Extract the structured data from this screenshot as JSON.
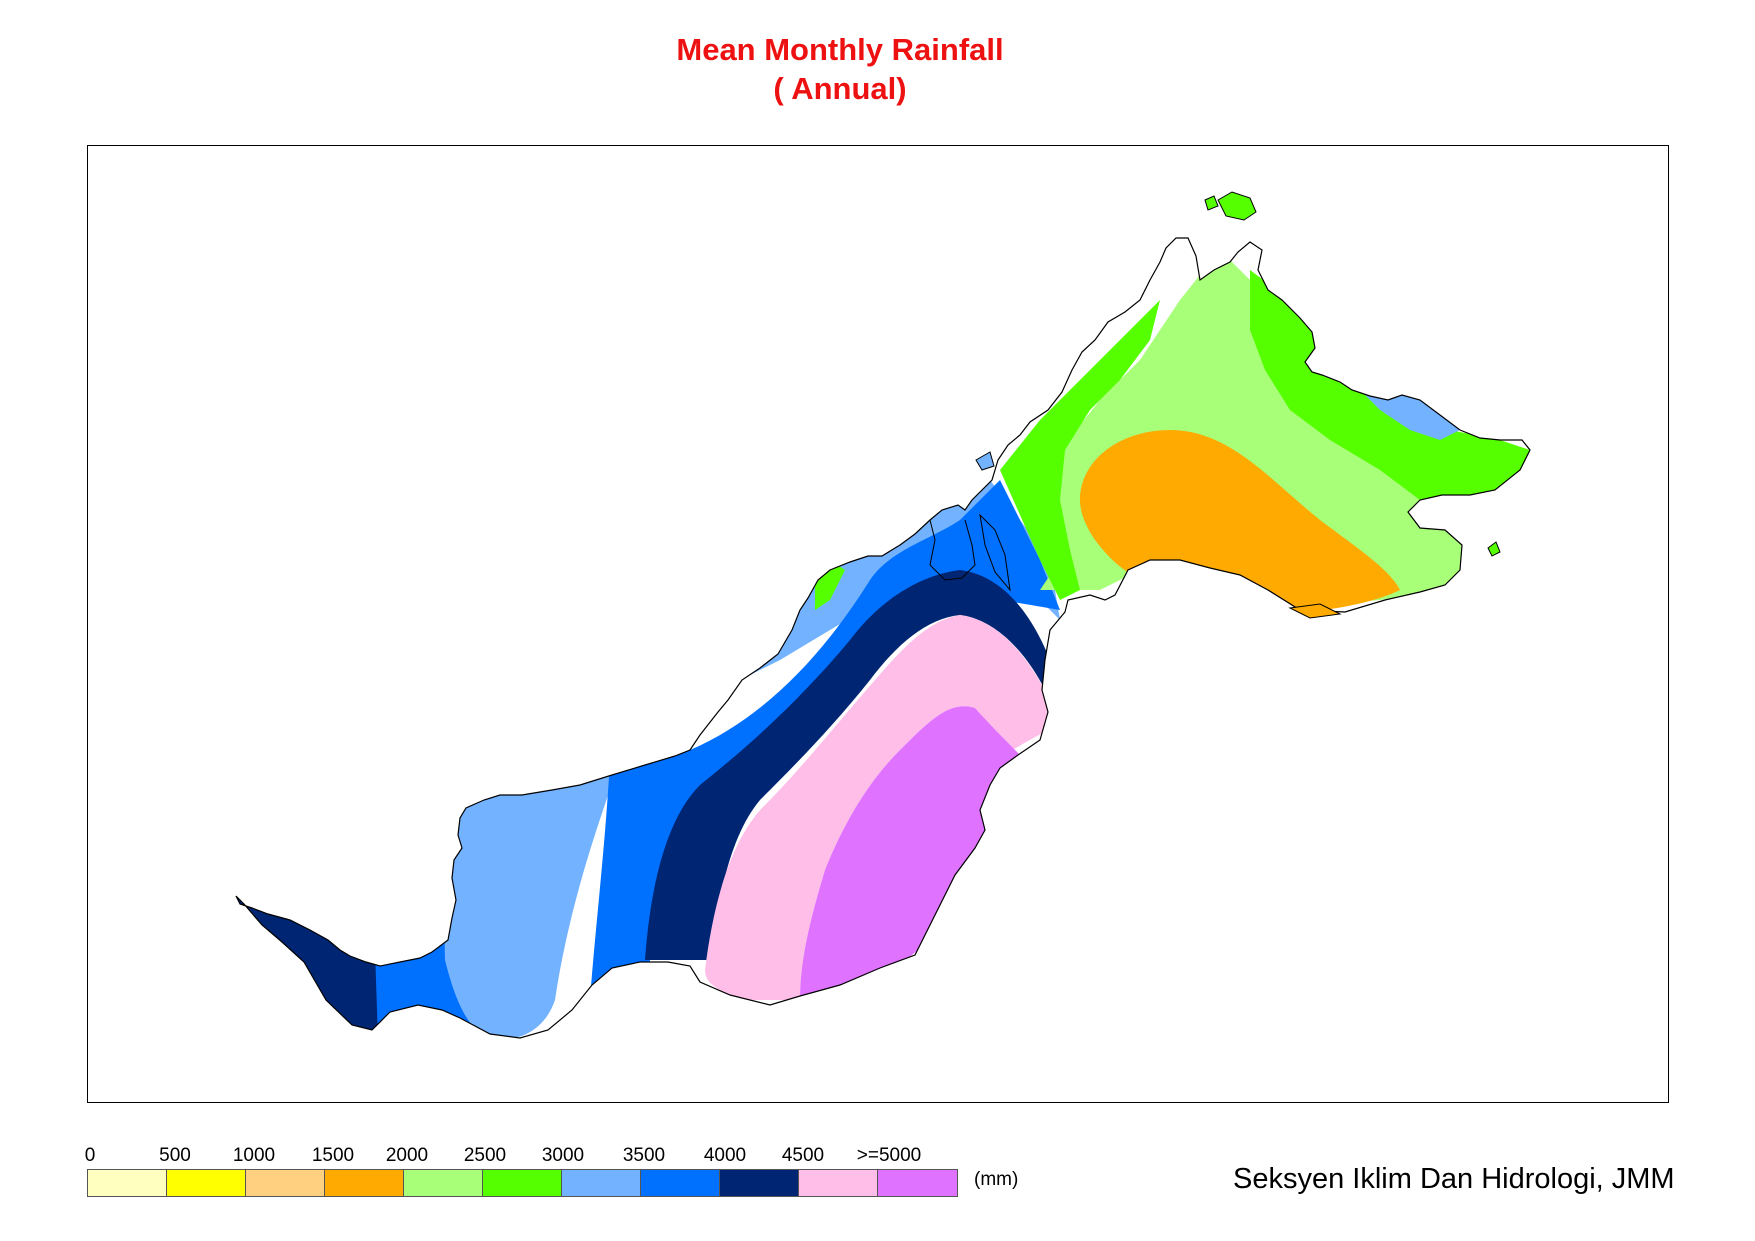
{
  "title": {
    "line1": "Mean Monthly Rainfall",
    "line2": "( Annual)"
  },
  "legend": {
    "ticks": [
      "0",
      "500",
      "1000",
      "1500",
      "2000",
      "2500",
      "3000",
      "3500",
      "4000",
      "4500",
      ">=5000"
    ],
    "colors": [
      "#ffffc0",
      "#ffff00",
      "#ffd080",
      "#ffaa00",
      "#a8ff78",
      "#55ff00",
      "#73b2ff",
      "#0070ff",
      "#002673",
      "#ffbee8",
      "#df73ff"
    ],
    "unit": "(mm)"
  },
  "credit": "Seksyen Iklim Dan Hidrologi, JMM",
  "zones": [
    {
      "name": "zone-deep-blue-west",
      "color": "#002673"
    },
    {
      "name": "zone-blue-west",
      "color": "#0070ff"
    },
    {
      "name": "zone-light-blue",
      "color": "#73b2ff"
    },
    {
      "name": "zone-blue-central",
      "color": "#0070ff"
    },
    {
      "name": "zone-deep-blue-central",
      "color": "#002673"
    },
    {
      "name": "zone-pink",
      "color": "#ffbee8"
    },
    {
      "name": "zone-violet",
      "color": "#df73ff"
    },
    {
      "name": "zone-light-green",
      "color": "#a8ff78"
    },
    {
      "name": "zone-green",
      "color": "#55ff00"
    },
    {
      "name": "zone-orange",
      "color": "#ffaa00"
    }
  ]
}
